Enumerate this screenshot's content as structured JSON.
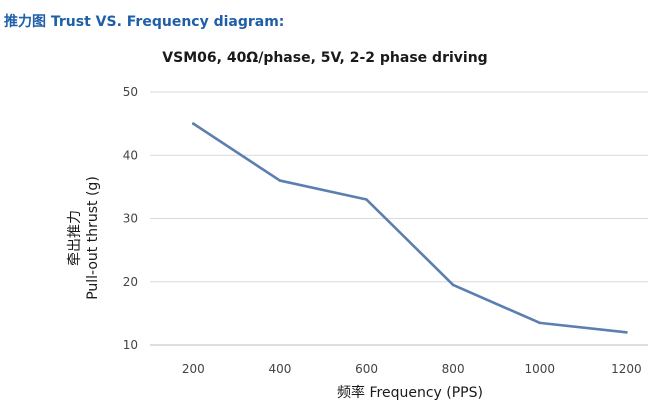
{
  "header": {
    "title": "推力图 Trust VS. Frequency diagram:"
  },
  "chart_data": {
    "type": "line",
    "title": "VSM06, 40Ω/phase, 5V, 2-2 phase driving",
    "ylabel_lines": [
      "牵出推力",
      "Pull-out thrust (g)"
    ],
    "xlabel": "频率 Frequency (PPS)",
    "x": [
      200,
      400,
      600,
      800,
      1000,
      1200
    ],
    "series": [
      {
        "values": [
          45,
          36,
          33,
          19.5,
          13.5,
          12
        ]
      }
    ],
    "ylim": [
      10,
      50
    ],
    "yticks": [
      10,
      20,
      30,
      40,
      50
    ],
    "grid": "horizontal",
    "line_color": "#5b7fb0"
  }
}
